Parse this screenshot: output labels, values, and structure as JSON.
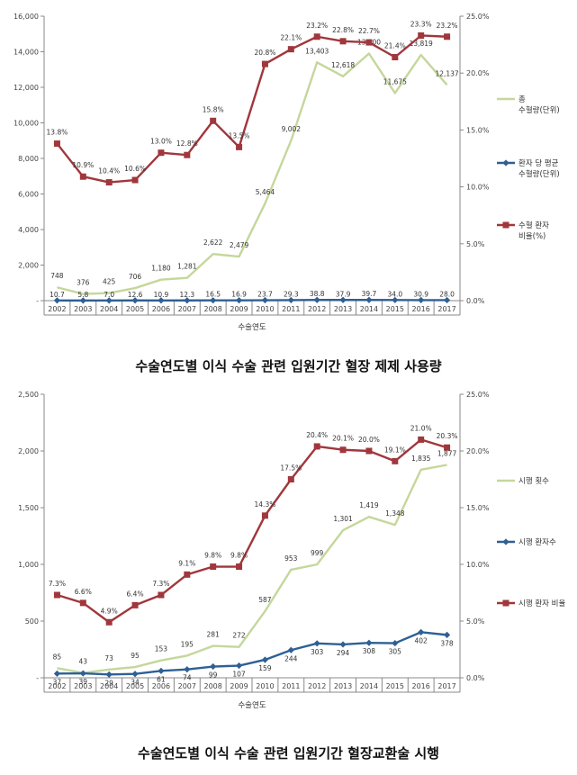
{
  "chart_data": [
    {
      "type": "line",
      "title": "수술연도별 이식 수술 관련 입원기간 혈장 제제 사용량",
      "xlabel": "수술연도",
      "categories": [
        "2002",
        "2003",
        "2004",
        "2005",
        "2006",
        "2007",
        "2008",
        "2009",
        "2010",
        "2011",
        "2012",
        "2013",
        "2014",
        "2015",
        "2016",
        "2017"
      ],
      "ylim": [
        0,
        16000
      ],
      "y_ticks": [
        "-",
        "2,000",
        "4,000",
        "6,000",
        "8,000",
        "10,000",
        "12,000",
        "14,000",
        "16,000"
      ],
      "y2lim": [
        0,
        25
      ],
      "y2_ticks": [
        "0.0%",
        "5.0%",
        "10.0%",
        "15.0%",
        "20.0%",
        "25.0%"
      ],
      "grid": false,
      "legend_position": "right",
      "series": [
        {
          "name": "총 수혈량(단위)",
          "legend_lines": [
            "총",
            "수혈량(단위)"
          ],
          "axis": "left",
          "color": "#c4d79b",
          "marker": "none",
          "values": [
            748,
            376,
            425,
            706,
            1180,
            1281,
            2622,
            2479,
            5464,
            9002,
            13403,
            12618,
            13900,
            11675,
            13819,
            12137
          ],
          "labels": [
            "748",
            "376",
            "425",
            "706",
            "1,180",
            "1,281",
            "2,622",
            "2,479",
            "5,464",
            "9,002",
            "13,403",
            "12,618",
            "13,900",
            "11,675",
            "13,819",
            "12,137"
          ]
        },
        {
          "name": "환자 당 평균 수혈량(단위)",
          "legend_lines": [
            "환자 당 평균",
            "수혈량(단위)"
          ],
          "axis": "left",
          "color": "#2e6095",
          "marker": "diamond",
          "values": [
            10.7,
            5.8,
            7.0,
            12.6,
            10.9,
            12.3,
            16.5,
            16.9,
            23.7,
            29.3,
            38.8,
            37.9,
            39.7,
            34.0,
            30.9,
            28.0
          ],
          "labels": [
            "10.7",
            "5.8",
            "7.0",
            "12.6",
            "10.9",
            "12.3",
            "16.5",
            "16.9",
            "23.7",
            "29.3",
            "38.8",
            "37.9",
            "39.7",
            "34.0",
            "30.9",
            "28.0"
          ]
        },
        {
          "name": "수혈 환자 비율(%)",
          "legend_lines": [
            "수혈 환자",
            "비율(%)"
          ],
          "axis": "right",
          "color": "#a0373c",
          "marker": "square",
          "values": [
            13.8,
            10.9,
            10.4,
            10.6,
            13.0,
            12.8,
            15.8,
            13.5,
            20.8,
            22.1,
            23.2,
            22.8,
            22.7,
            21.4,
            23.3,
            23.2
          ],
          "labels": [
            "13.8%",
            "10.9%",
            "10.4%",
            "10.6%",
            "13.0%",
            "12.8%",
            "15.8%",
            "13.5%",
            "20.8%",
            "22.1%",
            "23.2%",
            "22.8%",
            "22.7%",
            "21.4%",
            "23.3%",
            "23.2%"
          ]
        }
      ]
    },
    {
      "type": "line",
      "title": "수술연도별 이식 수술 관련 입원기간 혈장교환술 시행",
      "xlabel": "수술연도",
      "categories": [
        "2002",
        "2003",
        "2004",
        "2005",
        "2006",
        "2007",
        "2008",
        "2009",
        "2010",
        "2011",
        "2012",
        "2013",
        "2014",
        "2015",
        "2016",
        "2017"
      ],
      "ylim": [
        0,
        2500
      ],
      "y_ticks": [
        "-",
        "500",
        "1,000",
        "1,500",
        "2,000",
        "2,500"
      ],
      "y2lim": [
        0,
        25
      ],
      "y2_ticks": [
        "0.0%",
        "5.0%",
        "10.0%",
        "15.0%",
        "20.0%",
        "25.0%"
      ],
      "grid": false,
      "legend_position": "right",
      "series": [
        {
          "name": "시행 횟수",
          "legend_lines": [
            "시행 횟수"
          ],
          "axis": "left",
          "color": "#c4d79b",
          "marker": "none",
          "values": [
            85,
            43,
            73,
            95,
            153,
            195,
            281,
            272,
            587,
            953,
            999,
            1301,
            1419,
            1348,
            1835,
            1877
          ],
          "labels": [
            "85",
            "43",
            "73",
            "95",
            "153",
            "195",
            "281",
            "272",
            "587",
            "953",
            "999",
            "1,301",
            "1,419",
            "1,348",
            "1,835",
            "1,877"
          ]
        },
        {
          "name": "시행 환자수",
          "legend_lines": [
            "시행 환자수"
          ],
          "axis": "left",
          "color": "#2e6095",
          "marker": "diamond",
          "values": [
            37,
            39,
            29,
            34,
            61,
            74,
            99,
            107,
            159,
            244,
            303,
            294,
            308,
            305,
            402,
            378
          ],
          "labels": [
            "37",
            "39",
            "29",
            "34",
            "61",
            "74",
            "99",
            "107",
            "159",
            "244",
            "303",
            "294",
            "308",
            "305",
            "402",
            "378"
          ]
        },
        {
          "name": "시행 환자 비율",
          "legend_lines": [
            "시행 환자 비율"
          ],
          "axis": "right",
          "color": "#a0373c",
          "marker": "square",
          "values": [
            7.3,
            6.6,
            4.9,
            6.4,
            7.3,
            9.1,
            9.8,
            9.8,
            14.3,
            17.5,
            20.4,
            20.1,
            20.0,
            19.1,
            21.0,
            20.3
          ],
          "labels": [
            "7.3%",
            "6.6%",
            "4.9%",
            "6.4%",
            "7.3%",
            "9.1%",
            "9.8%",
            "9.8%",
            "14.3%",
            "17.5%",
            "20.4%",
            "20.1%",
            "20.0%",
            "19.1%",
            "21.0%",
            "20.3%"
          ]
        }
      ]
    }
  ]
}
